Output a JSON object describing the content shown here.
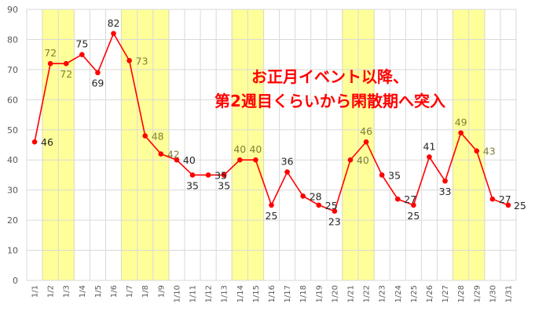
{
  "chart_data": {
    "type": "line",
    "title": "",
    "xlabel": "",
    "ylabel": "",
    "ylim": [
      0,
      90
    ],
    "yticks": [
      0,
      10,
      20,
      30,
      40,
      50,
      60,
      70,
      80,
      90
    ],
    "grid": true,
    "legend": "none",
    "categories": [
      "1/1",
      "1/2",
      "1/3",
      "1/4",
      "1/5",
      "1/6",
      "1/7",
      "1/8",
      "1/9",
      "1/10",
      "1/11",
      "1/12",
      "1/13",
      "1/14",
      "1/15",
      "1/16",
      "1/17",
      "1/18",
      "1/19",
      "1/20",
      "1/21",
      "1/22",
      "1/23",
      "1/24",
      "1/25",
      "1/26",
      "1/27",
      "1/28",
      "1/29",
      "1/30",
      "1/31"
    ],
    "series": [
      {
        "values": [
          46,
          72,
          72,
          75,
          69,
          82,
          73,
          48,
          42,
          40,
          35,
          35,
          35,
          40,
          40,
          25,
          36,
          28,
          25,
          23,
          40,
          46,
          35,
          27,
          25,
          41,
          33,
          49,
          43,
          27,
          25
        ],
        "color": "#ff0000"
      }
    ],
    "highlight_ranges": [
      {
        "from": "1/2",
        "to": "1/3"
      },
      {
        "from": "1/7",
        "to": "1/9"
      },
      {
        "from": "1/14",
        "to": "1/15"
      },
      {
        "from": "1/21",
        "to": "1/22"
      },
      {
        "from": "1/28",
        "to": "1/29"
      }
    ],
    "highlight_color": "#ffff99",
    "highlight_label_color": "#7f7f32",
    "normal_label_color": "#262626",
    "annotation": {
      "line1": "お正月イベント以降、",
      "line2": "第2週目くらいから閑散期へ突入",
      "color": "#ff0000"
    }
  }
}
